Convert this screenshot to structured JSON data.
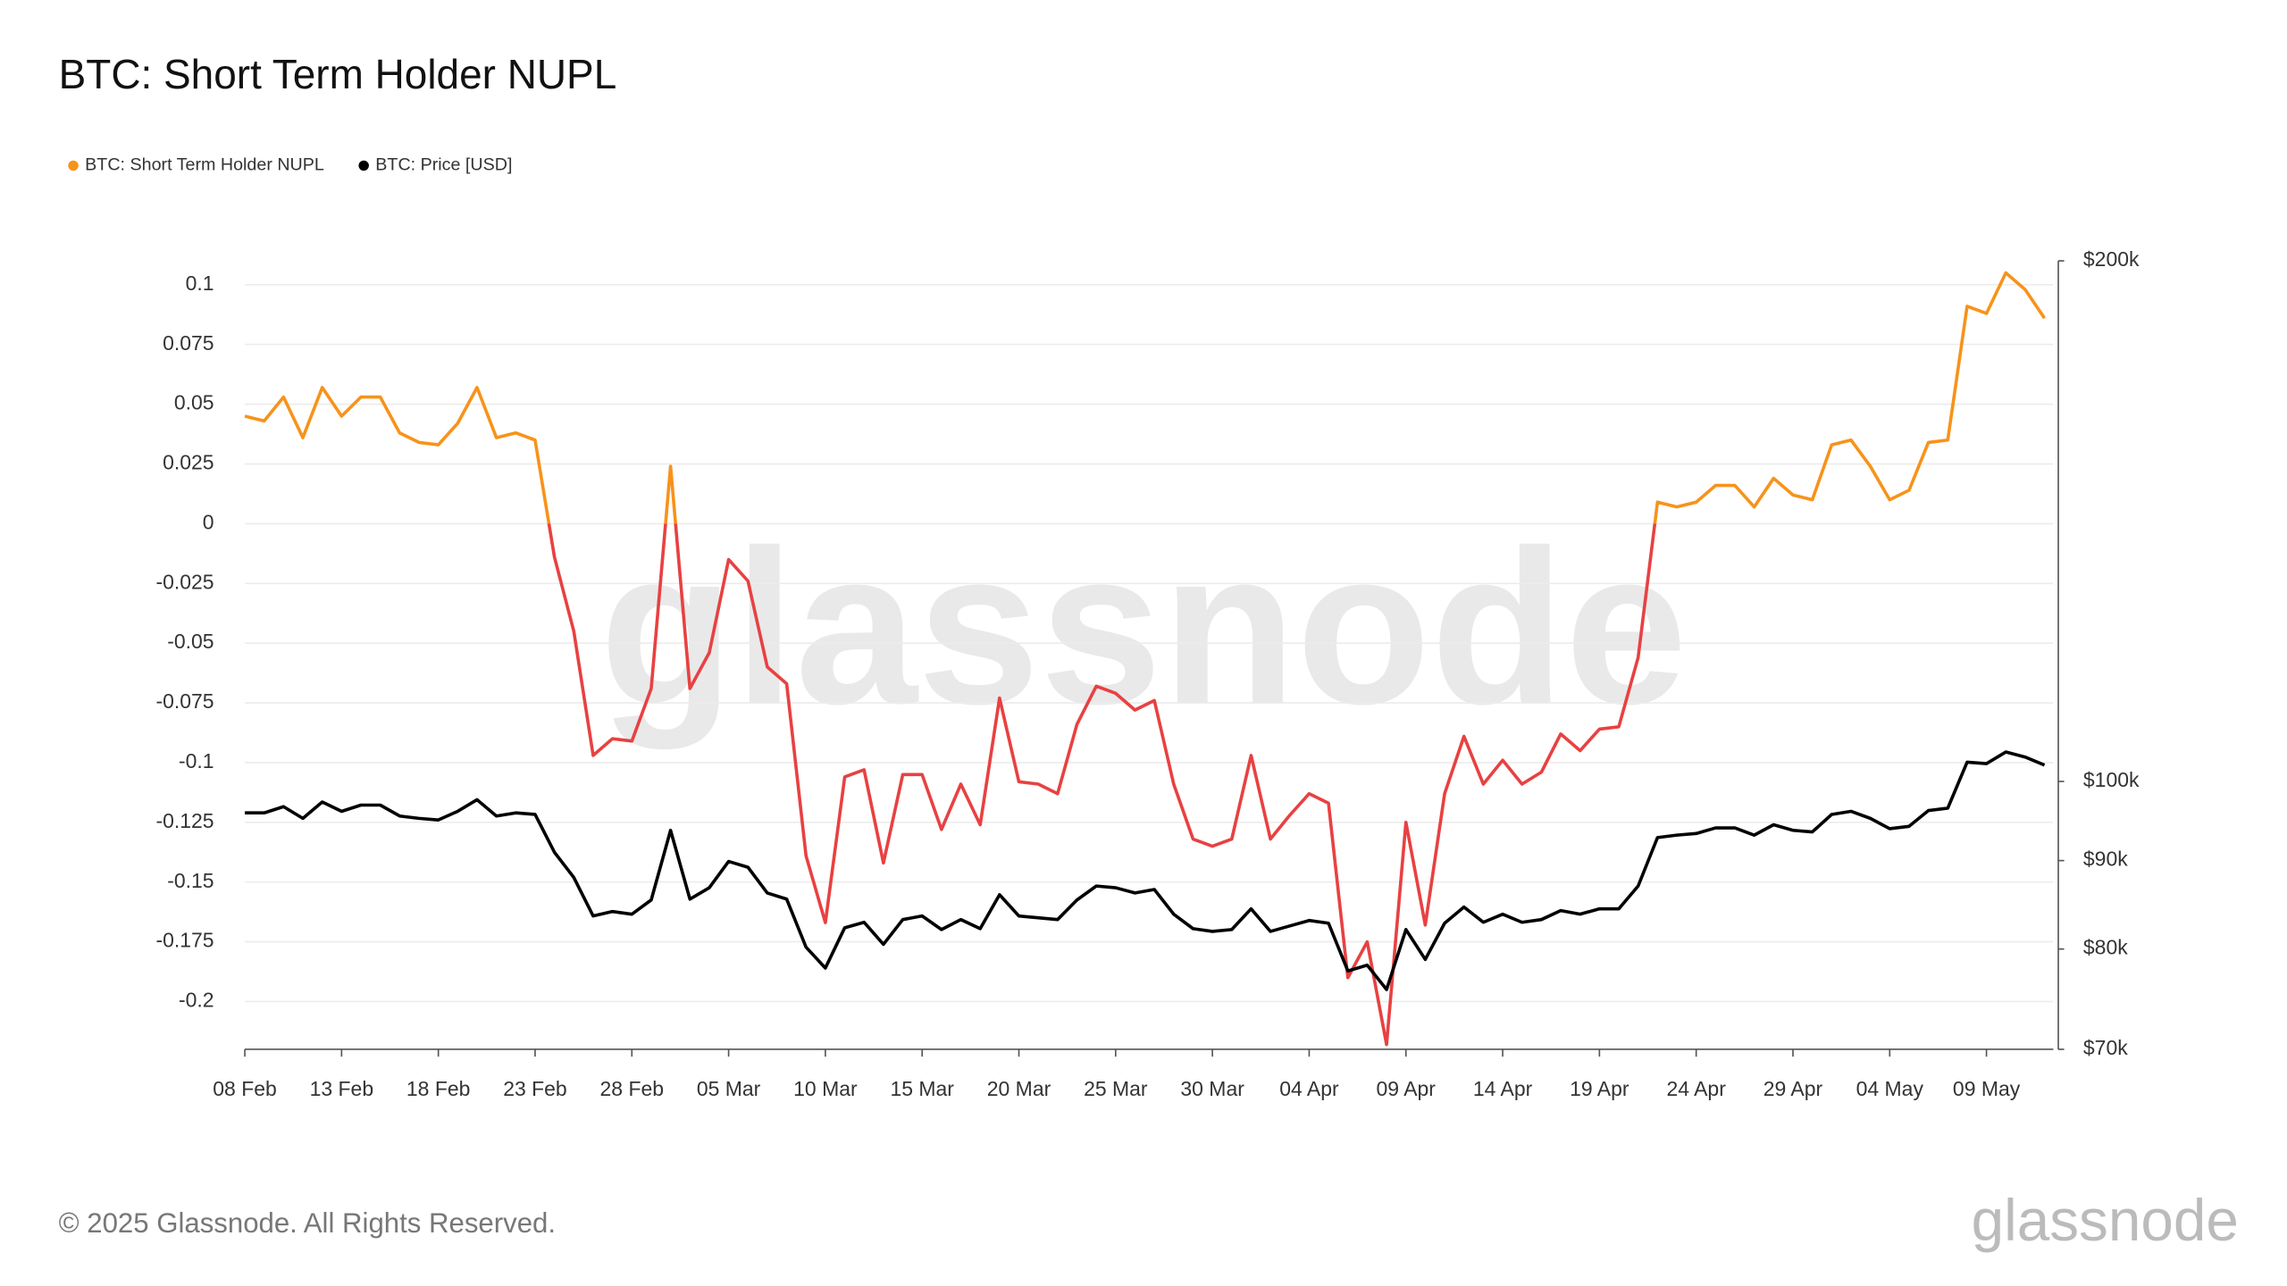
{
  "chart_data": {
    "type": "line",
    "title": "BTC: Short Term Holder NUPL",
    "footer": "© 2025 Glassnode. All Rights Reserved.",
    "watermark": "glassnode",
    "logo": "glassnode",
    "categories": [
      "08 Feb",
      null,
      null,
      null,
      null,
      "13 Feb",
      null,
      null,
      null,
      null,
      "18 Feb",
      null,
      null,
      null,
      null,
      "23 Feb",
      null,
      null,
      null,
      null,
      "28 Feb",
      null,
      null,
      null,
      null,
      "05 Mar",
      null,
      null,
      null,
      null,
      "10 Mar",
      null,
      null,
      null,
      null,
      "15 Mar",
      null,
      null,
      null,
      null,
      "20 Mar",
      null,
      null,
      null,
      null,
      "25 Mar",
      null,
      null,
      null,
      null,
      "30 Mar",
      null,
      null,
      null,
      null,
      "04 Apr",
      null,
      null,
      null,
      null,
      "09 Apr",
      null,
      null,
      null,
      null,
      "14 Apr",
      null,
      null,
      null,
      null,
      "19 Apr",
      null,
      null,
      null,
      null,
      "24 Apr",
      null,
      null,
      null,
      null,
      "29 Apr",
      null,
      null,
      null,
      null,
      "04 May",
      null,
      null,
      null,
      null,
      "09 May",
      null,
      null,
      null
    ],
    "series": [
      {
        "name": "BTC: Short Term Holder NUPL",
        "color": "#f7931a",
        "negative_color": "#e84142",
        "axis": "y",
        "values": [
          0.045,
          0.043,
          0.053,
          0.036,
          0.057,
          0.045,
          0.053,
          0.053,
          0.038,
          0.034,
          0.033,
          0.042,
          0.057,
          0.036,
          0.038,
          0.035,
          -0.014,
          -0.045,
          -0.097,
          -0.09,
          -0.091,
          -0.069,
          0.024,
          -0.069,
          -0.054,
          -0.015,
          -0.024,
          -0.06,
          -0.067,
          -0.139,
          -0.167,
          -0.106,
          -0.103,
          -0.142,
          -0.105,
          -0.105,
          -0.128,
          -0.109,
          -0.126,
          -0.073,
          -0.108,
          -0.109,
          -0.113,
          -0.084,
          -0.068,
          -0.071,
          -0.078,
          -0.074,
          -0.109,
          -0.132,
          -0.135,
          -0.132,
          -0.097,
          -0.132,
          -0.122,
          -0.113,
          -0.117,
          -0.19,
          -0.175,
          -0.218,
          -0.125,
          -0.168,
          -0.113,
          -0.089,
          -0.109,
          -0.099,
          -0.109,
          -0.104,
          -0.088,
          -0.095,
          -0.086,
          -0.085,
          -0.056,
          0.009,
          0.007,
          0.009,
          0.016,
          0.016,
          0.007,
          0.019,
          0.012,
          0.01,
          0.033,
          0.035,
          0.024,
          0.01,
          0.014,
          0.034,
          0.035,
          0.091,
          0.088,
          0.105,
          0.098,
          0.086
        ]
      },
      {
        "name": "BTC: Price [USD]",
        "color": "#000000",
        "axis": "y2",
        "values": [
          95900,
          95900,
          96700,
          95200,
          97300,
          96100,
          96900,
          96900,
          95500,
          95200,
          95000,
          96100,
          97600,
          95500,
          95900,
          95700,
          91000,
          88000,
          83600,
          84100,
          83800,
          85400,
          93700,
          85500,
          86800,
          89900,
          89200,
          86200,
          85500,
          80200,
          78000,
          82300,
          82900,
          80500,
          83200,
          83600,
          82100,
          83200,
          82200,
          86000,
          83600,
          83400,
          83200,
          85400,
          87000,
          86800,
          86200,
          86600,
          83800,
          82200,
          81900,
          82100,
          84400,
          81900,
          82500,
          83100,
          82800,
          77700,
          78300,
          75800,
          82100,
          78900,
          82800,
          84600,
          82900,
          83800,
          82900,
          83200,
          84200,
          83800,
          84400,
          84400,
          87000,
          92800,
          93100,
          93300,
          94000,
          94000,
          93100,
          94400,
          93700,
          93500,
          95700,
          96100,
          95200,
          93900,
          94200,
          96200,
          96500,
          102600,
          102400,
          104000,
          103300,
          102200
        ]
      }
    ],
    "ylim": [
      -0.22,
      0.11
    ],
    "yticks": [
      0.1,
      0.075,
      0.05,
      0.025,
      0,
      -0.025,
      -0.05,
      -0.075,
      -0.1,
      -0.125,
      -0.15,
      -0.175,
      -0.2
    ],
    "y2lim": [
      70000,
      200000
    ],
    "y2scale": "log",
    "y2ticks": [
      {
        "value": 200000,
        "label": "$200k"
      },
      {
        "value": 100000,
        "label": "$100k"
      },
      {
        "value": 90000,
        "label": "$90k"
      },
      {
        "value": 80000,
        "label": "$80k"
      },
      {
        "value": 70000,
        "label": "$70k"
      }
    ],
    "grid": true
  }
}
